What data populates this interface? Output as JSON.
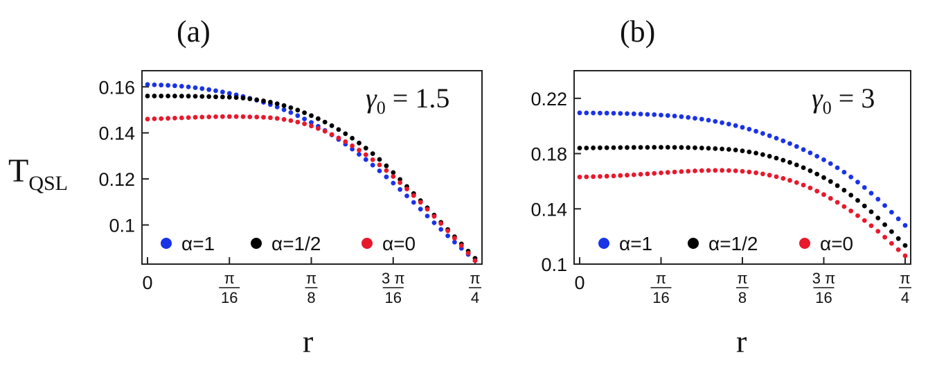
{
  "figure": {
    "ylabel_main": "T",
    "ylabel_sub": "QSL",
    "xlabel": "r"
  },
  "chart_data": [
    {
      "type": "scatter",
      "panel_label": "(a)",
      "annotation": {
        "symbol": "γ",
        "sub": "0",
        "text": " = 1.5"
      },
      "xlabel": "r",
      "ylabel": "T_QSL",
      "xlim": [
        0,
        0.7854
      ],
      "ylim": [
        0.083,
        0.167
      ],
      "yticks": [
        {
          "value": 0.1,
          "label": "0.1"
        },
        {
          "value": 0.12,
          "label": "0.12"
        },
        {
          "value": 0.14,
          "label": "0.14"
        },
        {
          "value": 0.16,
          "label": "0.16"
        }
      ],
      "xticks": [
        {
          "value": 0,
          "label": "0"
        },
        {
          "value": 0.19635,
          "num": "π",
          "den": "16"
        },
        {
          "value": 0.3927,
          "num": "π",
          "den": "8"
        },
        {
          "value": 0.58905,
          "num": "3 π",
          "den": "16"
        },
        {
          "value": 0.7854,
          "num": "π",
          "den": "4"
        }
      ],
      "legend_position": "bottom-left",
      "series": [
        {
          "name": "α=1",
          "color": "#1a33e6",
          "x": [
            0,
            0.0785,
            0.157,
            0.2356,
            0.3142,
            0.3927,
            0.4712,
            0.5498,
            0.6283,
            0.7069,
            0.7854
          ],
          "y": [
            0.161,
            0.1603,
            0.1585,
            0.1555,
            0.151,
            0.1445,
            0.1355,
            0.1245,
            0.1115,
            0.0975,
            0.0845
          ]
        },
        {
          "name": "α=1/2",
          "color": "#000000",
          "x": [
            0,
            0.0785,
            0.157,
            0.2356,
            0.3142,
            0.3927,
            0.4712,
            0.5498,
            0.6283,
            0.7069,
            0.7854
          ],
          "y": [
            0.156,
            0.156,
            0.1557,
            0.155,
            0.1525,
            0.1475,
            0.14,
            0.1295,
            0.1155,
            0.1005,
            0.0855
          ]
        },
        {
          "name": "α=0",
          "color": "#e8192c",
          "x": [
            0,
            0.0785,
            0.157,
            0.2356,
            0.3142,
            0.3927,
            0.4712,
            0.5498,
            0.6283,
            0.7069,
            0.7854
          ],
          "y": [
            0.146,
            0.1465,
            0.147,
            0.147,
            0.1462,
            0.143,
            0.1365,
            0.127,
            0.1145,
            0.1,
            0.0845
          ]
        }
      ]
    },
    {
      "type": "scatter",
      "panel_label": "(b)",
      "annotation": {
        "symbol": "γ",
        "sub": "0",
        "text": " = 3"
      },
      "xlabel": "r",
      "ylabel": "T_QSL",
      "xlim": [
        0,
        0.7854
      ],
      "ylim": [
        0.1,
        0.24
      ],
      "yticks": [
        {
          "value": 0.1,
          "label": "0.1"
        },
        {
          "value": 0.14,
          "label": "0.14"
        },
        {
          "value": 0.18,
          "label": "0.18"
        },
        {
          "value": 0.22,
          "label": "0.22"
        }
      ],
      "xticks": [
        {
          "value": 0,
          "label": "0"
        },
        {
          "value": 0.19635,
          "num": "π",
          "den": "16"
        },
        {
          "value": 0.3927,
          "num": "π",
          "den": "8"
        },
        {
          "value": 0.58905,
          "num": "3 π",
          "den": "16"
        },
        {
          "value": 0.7854,
          "num": "π",
          "den": "4"
        }
      ],
      "legend_position": "bottom-left",
      "series": [
        {
          "name": "α=1",
          "color": "#1a33e6",
          "x": [
            0,
            0.0785,
            0.157,
            0.2356,
            0.3142,
            0.3927,
            0.4712,
            0.5498,
            0.6283,
            0.7069,
            0.7854
          ],
          "y": [
            0.2095,
            0.2092,
            0.2085,
            0.207,
            0.204,
            0.199,
            0.1915,
            0.1815,
            0.1685,
            0.1505,
            0.128
          ]
        },
        {
          "name": "α=1/2",
          "color": "#000000",
          "x": [
            0,
            0.0785,
            0.157,
            0.2356,
            0.3142,
            0.3927,
            0.4712,
            0.5498,
            0.6283,
            0.7069,
            0.7854
          ],
          "y": [
            0.184,
            0.1843,
            0.1845,
            0.1845,
            0.1838,
            0.182,
            0.177,
            0.1685,
            0.1555,
            0.137,
            0.1135
          ]
        },
        {
          "name": "α=0",
          "color": "#e8192c",
          "x": [
            0,
            0.0785,
            0.157,
            0.2356,
            0.3142,
            0.3927,
            0.4712,
            0.5498,
            0.6283,
            0.7069,
            0.7854
          ],
          "y": [
            0.163,
            0.1638,
            0.1652,
            0.1668,
            0.1678,
            0.1672,
            0.1635,
            0.156,
            0.1435,
            0.127,
            0.106
          ]
        }
      ]
    }
  ]
}
